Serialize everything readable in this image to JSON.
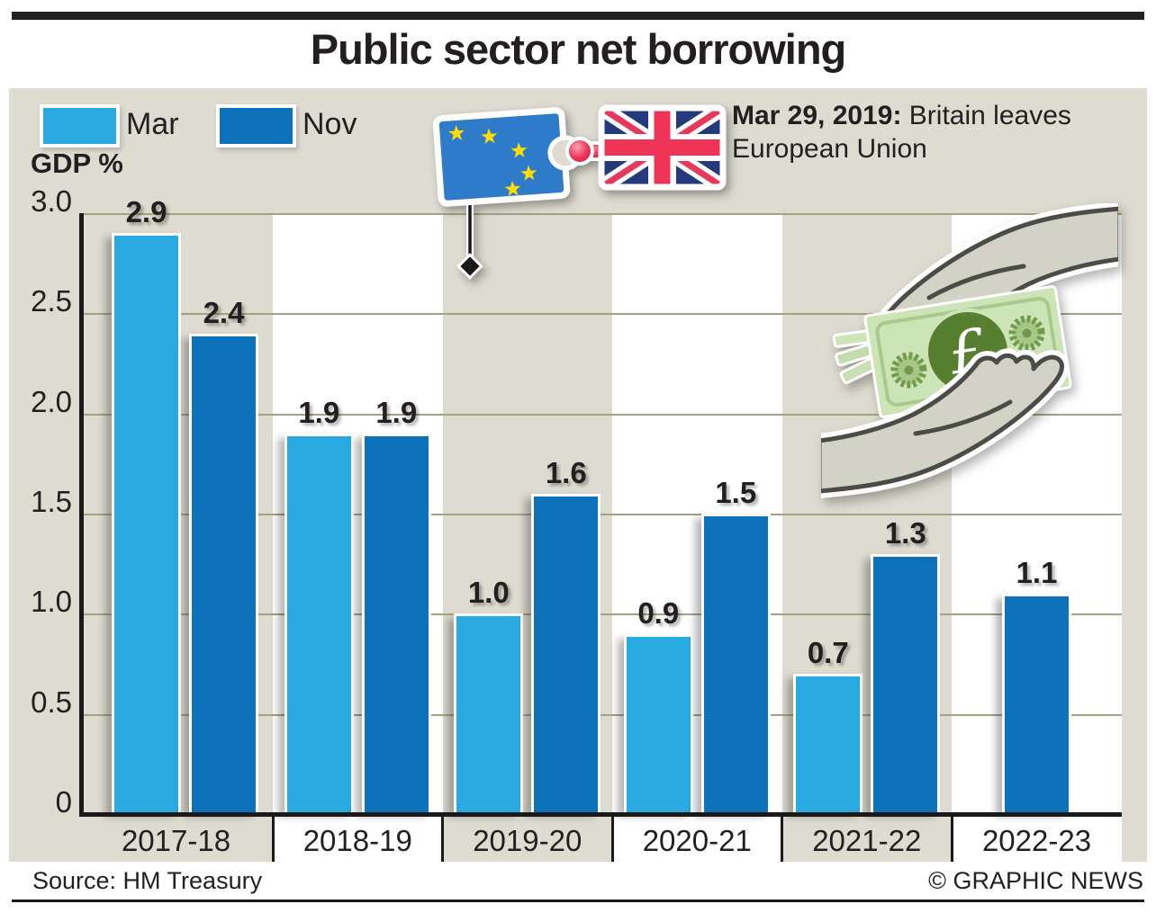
{
  "title": "Public sector net borrowing",
  "axis_label": "GDP %",
  "legend": [
    {
      "label": "Mar",
      "color": "#29abe2"
    },
    {
      "label": "Nov",
      "color": "#0d72b9"
    }
  ],
  "annotation": {
    "date_bold": "Mar 29, 2019:",
    "text": " Britain leaves European Union"
  },
  "footer": {
    "source": "Source: HM Treasury",
    "credit": "© GRAPHIC NEWS"
  },
  "colors": {
    "panel": "#dedcd1",
    "band_white": "#ffffff",
    "gridline": "#a3a384",
    "axis": "#1a1a1a",
    "mar": "#29abe2",
    "nov": "#0d72b9",
    "eu_blue": "#2e7bc9",
    "star_yellow": "#ffdd00",
    "uk_navy": "#253a7d",
    "uk_red": "#ed3457",
    "hand_beige": "#d3d2c6",
    "note_green": "#cde4b6",
    "note_dark_green": "#56802f"
  },
  "chart_data": {
    "type": "bar",
    "title": "Public sector net borrowing",
    "ylabel": "GDP %",
    "ylim": [
      0,
      3.0
    ],
    "ytick_step": 0.5,
    "yticks": [
      "3.0",
      "2.5",
      "2.0",
      "1.5",
      "1.0",
      "0.5",
      "0"
    ],
    "grid": true,
    "legend_position": "top-left",
    "categories": [
      "2017-18",
      "2018-19",
      "2019-20",
      "2020-21",
      "2021-22",
      "2022-23"
    ],
    "series": [
      {
        "name": "Mar",
        "color": "#29abe2",
        "values": [
          2.9,
          1.9,
          1.0,
          0.9,
          0.7,
          null
        ]
      },
      {
        "name": "Nov",
        "color": "#0d72b9",
        "values": [
          2.4,
          1.9,
          1.6,
          1.5,
          1.3,
          1.1
        ]
      }
    ]
  }
}
